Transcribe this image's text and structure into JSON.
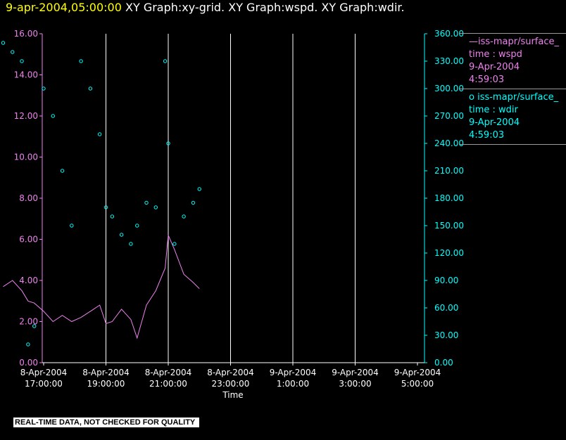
{
  "header": {
    "date": "9-apr-2004,05:00:00",
    "graphs": "XY Graph:xy-grid.  XY Graph:wspd.  XY Graph:wdir."
  },
  "legend": [
    {
      "line1": "—iss-mapr/surface_",
      "line2": "time : wspd",
      "line3": "9-Apr-2004",
      "line4": "4:59:03",
      "color": "#ee82ee"
    },
    {
      "line1": "o  iss-mapr/surface_",
      "line2": "time : wdir",
      "line3": "9-Apr-2004",
      "line4": "4:59:03",
      "color": "#00ffff"
    }
  ],
  "warning": "REAL-TIME DATA, NOT CHECKED FOR QUALITY",
  "chart_data": {
    "type": "line",
    "xlabel": "Time",
    "x_ticks": [
      {
        "line1": "8-Apr-2004",
        "line2": "17:00:00"
      },
      {
        "line1": "8-Apr-2004",
        "line2": "19:00:00"
      },
      {
        "line1": "8-Apr-2004",
        "line2": "21:00:00"
      },
      {
        "line1": "8-Apr-2004",
        "line2": "23:00:00"
      },
      {
        "line1": "9-Apr-2004",
        "line2": "1:00:00"
      },
      {
        "line1": "9-Apr-2004",
        "line2": "3:00:00"
      },
      {
        "line1": "9-Apr-2004",
        "line2": "5:00:00"
      }
    ],
    "x_range_hours": [
      -1.3,
      5.0
    ],
    "y_left": {
      "ticks": [
        "0.00",
        "2.00",
        "4.00",
        "6.00",
        "8.00",
        "10.00",
        "12.00",
        "14.00",
        "16.00"
      ],
      "range": [
        0,
        16
      ],
      "color": "#ee82ee"
    },
    "y_right": {
      "ticks": [
        "0.00",
        "30.00",
        "60.00",
        "90.00",
        "120.00",
        "150.00",
        "180.00",
        "210.00",
        "240.00",
        "270.00",
        "300.00",
        "330.00",
        "360.00"
      ],
      "range": [
        0,
        360
      ],
      "color": "#00ffff"
    },
    "grid": "vertical",
    "series": [
      {
        "name": "time : wspd",
        "color": "#ee82ee",
        "x": [
          -1.3,
          -1.0,
          -0.7,
          -0.5,
          -0.3,
          0.0,
          0.3,
          0.6,
          0.9,
          1.2,
          1.5,
          1.8,
          2.0,
          2.2,
          2.5,
          2.8,
          3.0,
          3.3,
          3.6,
          3.9,
          4.0,
          4.2,
          4.5,
          4.8,
          5.0
        ],
        "values": [
          3.7,
          4.0,
          3.5,
          3.0,
          2.9,
          2.5,
          2.0,
          2.3,
          2.0,
          2.2,
          2.5,
          2.8,
          1.9,
          2.0,
          2.6,
          2.1,
          1.2,
          2.8,
          3.5,
          4.6,
          6.2,
          5.5,
          4.3,
          3.9,
          3.6
        ]
      },
      {
        "name": "time : wdir",
        "color": "#00ffff",
        "x": [
          -1.3,
          -1.0,
          -0.7,
          -0.5,
          -0.3,
          0.0,
          0.3,
          0.6,
          0.9,
          1.2,
          1.5,
          1.8,
          2.0,
          2.2,
          2.5,
          2.8,
          3.0,
          3.3,
          3.6,
          3.9,
          4.0,
          4.2,
          4.5,
          4.8,
          5.0
        ],
        "values": [
          350,
          340,
          330,
          20,
          40,
          300,
          270,
          210,
          150,
          330,
          300,
          250,
          170,
          160,
          140,
          130,
          150,
          175,
          170,
          330,
          240,
          130,
          160,
          175,
          190
        ]
      }
    ]
  }
}
